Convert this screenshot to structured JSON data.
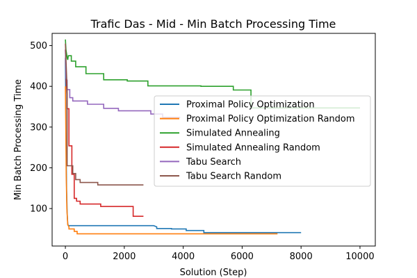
{
  "chart_data": {
    "type": "line",
    "title": "Trafic Das - Mid - Min Batch Processing Time",
    "xlabel": "Solution (Step)",
    "ylabel": "Min Batch Processing Time",
    "xlim": [
      -450,
      10520
    ],
    "ylim": [
      8,
      530
    ],
    "xticks": [
      0,
      2000,
      4000,
      6000,
      8000,
      10000
    ],
    "yticks": [
      100,
      200,
      300,
      400,
      500
    ],
    "grid": false,
    "legend_position": "center-right",
    "series": [
      {
        "name": "Proximal Policy Optimization",
        "color": "#1f77b4",
        "x": [
          0,
          20,
          40,
          60,
          80,
          100,
          3000,
          3100,
          3100,
          3600,
          3600,
          4100,
          4100,
          4700,
          4700,
          8000
        ],
        "y": [
          470,
          300,
          150,
          90,
          62,
          58,
          58,
          55,
          51,
          51,
          50,
          50,
          46,
          46,
          41,
          41
        ]
      },
      {
        "name": "Proximal Policy Optimization Random",
        "color": "#ff7f0e",
        "x": [
          0,
          30,
          50,
          80,
          120,
          120,
          300,
          300,
          400,
          400,
          7200
        ],
        "y": [
          400,
          180,
          100,
          60,
          55,
          50,
          50,
          44,
          44,
          38,
          38
        ]
      },
      {
        "name": "Simulated Annealing",
        "color": "#2ca02c",
        "x": [
          0,
          20,
          40,
          60,
          80,
          100,
          100,
          200,
          200,
          350,
          350,
          700,
          700,
          1300,
          1300,
          2100,
          2100,
          2800,
          2800,
          4600,
          4600,
          5700,
          5700,
          6300,
          6300,
          10000
        ],
        "y": [
          515,
          490,
          480,
          470,
          465,
          475,
          475,
          475,
          462,
          462,
          448,
          448,
          431,
          431,
          416,
          416,
          413,
          413,
          401,
          401,
          400,
          400,
          391,
          391,
          347,
          347
        ]
      },
      {
        "name": "Simulated Annealing Random",
        "color": "#d62728",
        "x": [
          0,
          30,
          60,
          60,
          120,
          120,
          220,
          220,
          300,
          300,
          380,
          380,
          500,
          500,
          1200,
          1200,
          2300,
          2300,
          2650
        ],
        "y": [
          490,
          410,
          380,
          345,
          345,
          254,
          254,
          184,
          184,
          125,
          125,
          118,
          118,
          111,
          111,
          105,
          105,
          81,
          81
        ]
      },
      {
        "name": "Tabu Search",
        "color": "#9467bd",
        "x": [
          0,
          30,
          60,
          60,
          150,
          150,
          250,
          250,
          750,
          750,
          1300,
          1300,
          1800,
          1800,
          2900,
          2900,
          3300,
          3300,
          3900
        ],
        "y": [
          490,
          420,
          415,
          392,
          392,
          372,
          372,
          364,
          364,
          356,
          356,
          346,
          346,
          340,
          340,
          332,
          332,
          324,
          324
        ]
      },
      {
        "name": "Tabu Search Random",
        "color": "#8c564b",
        "x": [
          0,
          30,
          60,
          60,
          250,
          250,
          350,
          350,
          500,
          500,
          1100,
          1100,
          2650
        ],
        "y": [
          505,
          450,
          390,
          205,
          205,
          186,
          186,
          171,
          171,
          164,
          164,
          158,
          158
        ]
      }
    ]
  }
}
